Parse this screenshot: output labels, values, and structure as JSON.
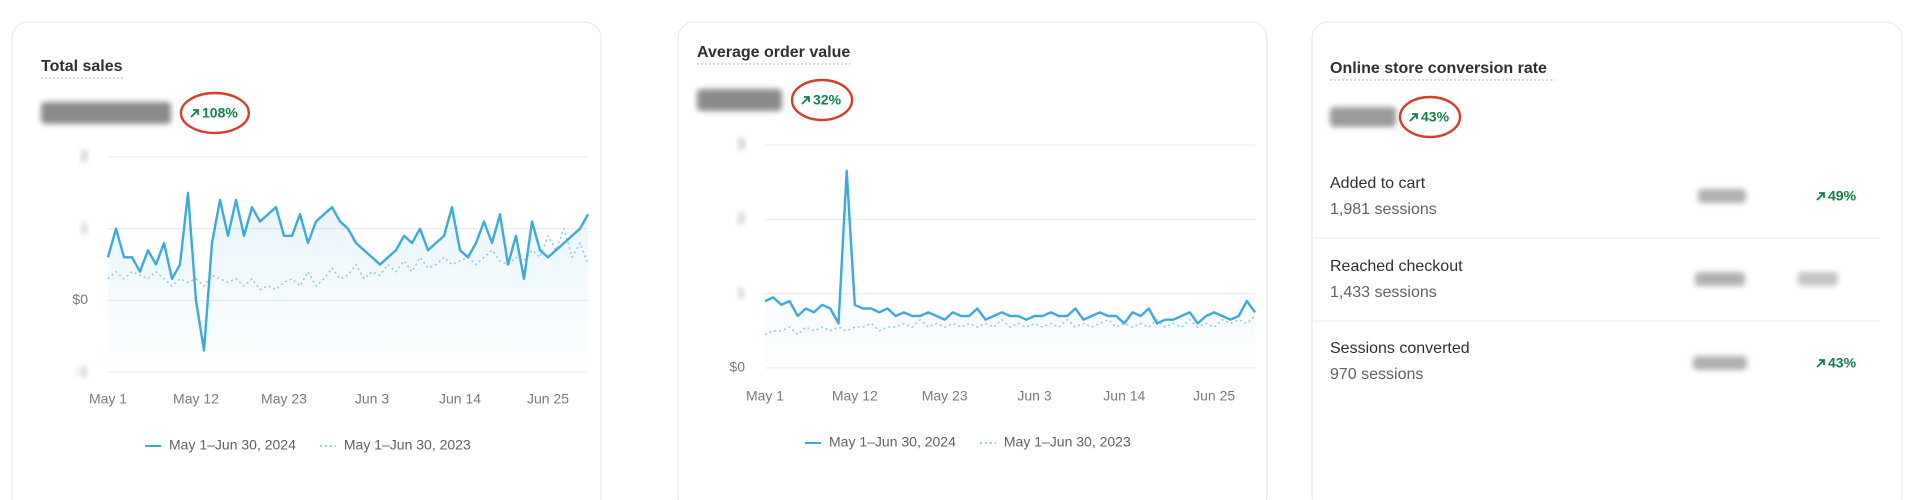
{
  "chart_data": [
    {
      "type": "line",
      "title": "Total sales",
      "change": "108%",
      "categories": [
        "May 1",
        null,
        null,
        null,
        null,
        null,
        null,
        null,
        null,
        null,
        null,
        "May 12",
        null,
        null,
        null,
        null,
        null,
        null,
        null,
        null,
        null,
        null,
        "May 23",
        null,
        null,
        null,
        null,
        null,
        null,
        null,
        null,
        null,
        null,
        "Jun 3",
        null,
        null,
        null,
        null,
        null,
        null,
        null,
        null,
        null,
        null,
        "Jun 14",
        null,
        null,
        null,
        null,
        null,
        null,
        null,
        null,
        null,
        null,
        "Jun 25",
        null,
        null,
        null,
        null,
        null
      ],
      "series": [
        {
          "name": "May 1–Jun 30, 2024",
          "color": "#3eaad8",
          "values": [
            0.6,
            1.0,
            0.6,
            0.6,
            0.4,
            0.7,
            0.5,
            0.8,
            0.3,
            0.5,
            1.5,
            0.0,
            -0.7,
            0.8,
            1.4,
            0.9,
            1.4,
            0.9,
            1.3,
            1.1,
            1.2,
            1.3,
            0.9,
            0.9,
            1.2,
            0.8,
            1.1,
            1.2,
            1.3,
            1.1,
            1.0,
            0.8,
            0.7,
            0.6,
            0.5,
            0.6,
            0.7,
            0.9,
            0.8,
            1.0,
            0.7,
            0.8,
            0.9,
            1.3,
            0.7,
            0.6,
            0.8,
            1.1,
            0.8,
            1.2,
            0.5,
            0.9,
            0.3,
            1.1,
            0.7,
            0.6,
            0.7,
            0.8,
            0.9,
            1.0,
            1.2
          ]
        },
        {
          "name": "May 1–Jun 30, 2023",
          "color": "#8fcbe6",
          "values": [
            0.3,
            0.4,
            0.3,
            0.4,
            0.35,
            0.3,
            0.4,
            0.3,
            0.2,
            0.3,
            0.25,
            0.3,
            0.2,
            0.35,
            0.3,
            0.25,
            0.3,
            0.2,
            0.3,
            0.15,
            0.2,
            0.15,
            0.25,
            0.3,
            0.2,
            0.4,
            0.2,
            0.3,
            0.45,
            0.3,
            0.35,
            0.5,
            0.3,
            0.4,
            0.35,
            0.5,
            0.4,
            0.55,
            0.4,
            0.6,
            0.45,
            0.5,
            0.6,
            0.5,
            0.55,
            0.6,
            0.5,
            0.6,
            0.7,
            0.55,
            0.5,
            0.6,
            0.55,
            0.7,
            0.6,
            0.9,
            0.7,
            1.0,
            0.6,
            0.8,
            0.5
          ]
        }
      ],
      "ylim": [
        -1,
        2
      ],
      "yticks": [
        -1,
        {
          "value": 0,
          "label": "$0"
        },
        1,
        2
      ],
      "grid": true
    },
    {
      "type": "line",
      "title": "Average order value",
      "change": "32%",
      "categories": [
        "May 1",
        null,
        null,
        null,
        null,
        null,
        null,
        null,
        null,
        null,
        null,
        "May 12",
        null,
        null,
        null,
        null,
        null,
        null,
        null,
        null,
        null,
        null,
        "May 23",
        null,
        null,
        null,
        null,
        null,
        null,
        null,
        null,
        null,
        null,
        "Jun 3",
        null,
        null,
        null,
        null,
        null,
        null,
        null,
        null,
        null,
        null,
        "Jun 14",
        null,
        null,
        null,
        null,
        null,
        null,
        null,
        null,
        null,
        null,
        "Jun 25",
        null,
        null,
        null,
        null,
        null
      ],
      "series": [
        {
          "name": "May 1–Jun 30, 2024",
          "color": "#3eaad8",
          "values": [
            0.9,
            0.95,
            0.85,
            0.9,
            0.7,
            0.8,
            0.75,
            0.85,
            0.8,
            0.6,
            2.65,
            0.85,
            0.8,
            0.8,
            0.75,
            0.8,
            0.7,
            0.75,
            0.7,
            0.7,
            0.75,
            0.7,
            0.65,
            0.75,
            0.7,
            0.7,
            0.8,
            0.65,
            0.7,
            0.75,
            0.7,
            0.7,
            0.65,
            0.7,
            0.7,
            0.75,
            0.7,
            0.7,
            0.8,
            0.65,
            0.7,
            0.75,
            0.7,
            0.7,
            0.6,
            0.75,
            0.7,
            0.8,
            0.6,
            0.65,
            0.65,
            0.7,
            0.75,
            0.6,
            0.7,
            0.75,
            0.7,
            0.65,
            0.7,
            0.9,
            0.75
          ]
        },
        {
          "name": "May 1–Jun 30, 2023",
          "color": "#8fcbe6",
          "values": [
            0.45,
            0.5,
            0.5,
            0.55,
            0.45,
            0.55,
            0.5,
            0.55,
            0.5,
            0.55,
            0.5,
            0.55,
            0.55,
            0.6,
            0.5,
            0.55,
            0.55,
            0.6,
            0.55,
            0.65,
            0.55,
            0.6,
            0.55,
            0.6,
            0.55,
            0.6,
            0.55,
            0.6,
            0.55,
            0.65,
            0.55,
            0.6,
            0.55,
            0.6,
            0.55,
            0.6,
            0.55,
            0.65,
            0.55,
            0.6,
            0.55,
            0.6,
            0.65,
            0.55,
            0.6,
            0.55,
            0.6,
            0.55,
            0.65,
            0.55,
            0.6,
            0.55,
            0.65,
            0.55,
            0.6,
            0.55,
            0.65,
            0.6,
            0.65,
            0.6,
            0.7
          ]
        }
      ],
      "ylim": [
        0,
        3
      ],
      "yticks": [
        {
          "value": 0,
          "label": "$0"
        },
        1,
        2,
        3
      ],
      "grid": true
    }
  ],
  "conversion_card": {
    "title": "Online store conversion rate",
    "change": "43%",
    "rows": [
      {
        "label": "Added to cart",
        "sessions": "1,981 sessions",
        "change": "49%"
      },
      {
        "label": "Reached checkout",
        "sessions": "1,433 sessions"
      },
      {
        "label": "Sessions converted",
        "sessions": "970 sessions",
        "change": "43%"
      }
    ]
  }
}
